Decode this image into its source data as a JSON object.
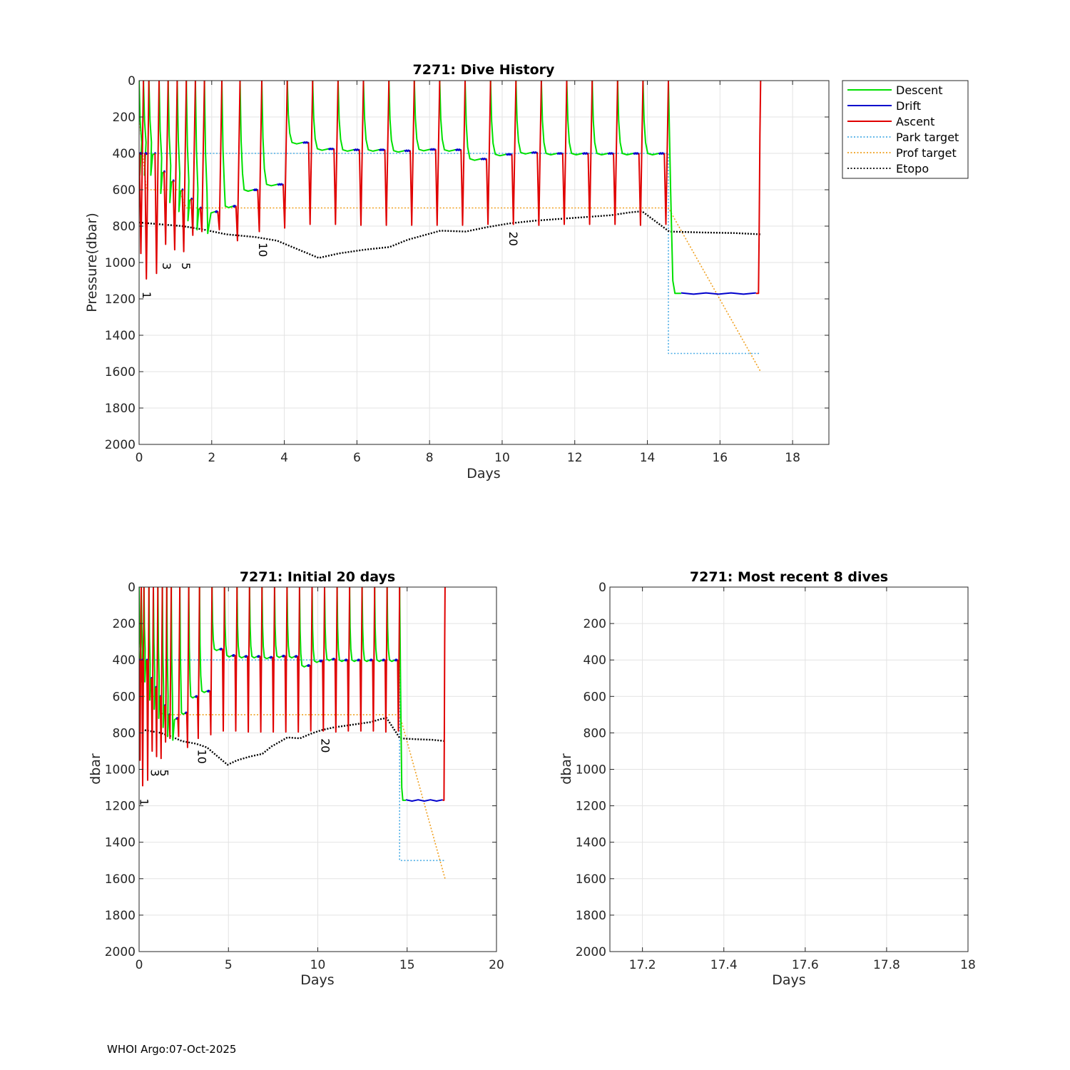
{
  "footer": "WHOI Argo:07-Oct-2025",
  "legend": {
    "placement": "outside-right",
    "entries": [
      {
        "label": "Descent",
        "color": "#00e000",
        "style": "solid"
      },
      {
        "label": "Drift",
        "color": "#0000cc",
        "style": "solid"
      },
      {
        "label": "Ascent",
        "color": "#e00000",
        "style": "solid"
      },
      {
        "label": "Park target",
        "color": "#4daee6",
        "style": "dotted"
      },
      {
        "label": "Prof target",
        "color": "#f0a020",
        "style": "dotted"
      },
      {
        "label": "Etopo",
        "color": "#000000",
        "style": "dotted"
      }
    ]
  },
  "chart_data": [
    {
      "id": "dive-history",
      "type": "line",
      "title": "7271: Dive History",
      "xlabel": "Days",
      "ylabel": "Pressure(dbar)",
      "xlim": [
        0,
        19
      ],
      "ylim": [
        0,
        2000
      ],
      "y_reversed": true,
      "grid": true,
      "xticks": [
        0,
        2,
        4,
        6,
        8,
        10,
        12,
        14,
        16,
        18
      ],
      "yticks": [
        0,
        200,
        400,
        600,
        800,
        1000,
        1200,
        1400,
        1600,
        1800,
        2000
      ],
      "cycle_labels": [
        {
          "text": "1",
          "x": 0.1,
          "y": 1160
        },
        {
          "text": "3",
          "x": 0.65,
          "y": 1000
        },
        {
          "text": "5",
          "x": 1.18,
          "y": 1000
        },
        {
          "text": "10",
          "x": 3.3,
          "y": 890
        },
        {
          "text": "20",
          "x": 10.2,
          "y": 830
        }
      ],
      "dives": [
        {
          "t": 0.0,
          "park": 400,
          "bottom": 950
        },
        {
          "t": 0.12,
          "park": 400,
          "bottom": 1090
        },
        {
          "t": 0.27,
          "park": 400,
          "bottom": 1060
        },
        {
          "t": 0.55,
          "park": 500,
          "bottom": 900
        },
        {
          "t": 0.8,
          "park": 550,
          "bottom": 930
        },
        {
          "t": 1.05,
          "park": 600,
          "bottom": 940
        },
        {
          "t": 1.3,
          "park": 650,
          "bottom": 850
        },
        {
          "t": 1.55,
          "park": 700,
          "bottom": 830
        },
        {
          "t": 1.8,
          "park": 720,
          "bottom": 820
        },
        {
          "t": 2.28,
          "park": 690,
          "bottom": 880
        },
        {
          "t": 2.78,
          "park": 600,
          "bottom": 830
        },
        {
          "t": 3.38,
          "park": 570,
          "bottom": 810
        },
        {
          "t": 4.08,
          "park": 340,
          "bottom": 790
        },
        {
          "t": 4.78,
          "park": 375,
          "bottom": 790
        },
        {
          "t": 5.48,
          "park": 380,
          "bottom": 795
        },
        {
          "t": 6.18,
          "park": 380,
          "bottom": 795
        },
        {
          "t": 6.88,
          "park": 385,
          "bottom": 795
        },
        {
          "t": 7.58,
          "park": 378,
          "bottom": 795
        },
        {
          "t": 8.28,
          "park": 380,
          "bottom": 795
        },
        {
          "t": 8.98,
          "park": 430,
          "bottom": 790
        },
        {
          "t": 9.68,
          "park": 405,
          "bottom": 790
        },
        {
          "t": 10.38,
          "park": 395,
          "bottom": 795
        },
        {
          "t": 11.08,
          "park": 400,
          "bottom": 790
        },
        {
          "t": 11.78,
          "park": 400,
          "bottom": 790
        },
        {
          "t": 12.48,
          "park": 400,
          "bottom": 790
        },
        {
          "t": 13.18,
          "park": 400,
          "bottom": 795
        },
        {
          "t": 13.88,
          "park": 400,
          "bottom": 790
        },
        {
          "t": 14.58,
          "park": 1170,
          "bottom": 1170
        }
      ],
      "final_ascent_t": 17.12,
      "park_target": [
        [
          0,
          400
        ],
        [
          14.58,
          400
        ],
        [
          14.58,
          1500
        ],
        [
          17.12,
          1500
        ]
      ],
      "prof_target": [
        [
          0,
          200
        ],
        [
          0.2,
          600
        ],
        [
          1.1,
          600
        ],
        [
          1.3,
          700
        ],
        [
          14.58,
          700
        ],
        [
          17.12,
          1600
        ]
      ],
      "etopo": [
        [
          0,
          780
        ],
        [
          0.6,
          790
        ],
        [
          1.2,
          800
        ],
        [
          1.8,
          820
        ],
        [
          2.4,
          845
        ],
        [
          3.2,
          860
        ],
        [
          3.8,
          880
        ],
        [
          4.4,
          930
        ],
        [
          4.95,
          975
        ],
        [
          5.5,
          950
        ],
        [
          6.2,
          930
        ],
        [
          6.9,
          915
        ],
        [
          7.4,
          875
        ],
        [
          8.3,
          825
        ],
        [
          9.0,
          830
        ],
        [
          9.6,
          805
        ],
        [
          10.2,
          785
        ],
        [
          10.9,
          770
        ],
        [
          11.6,
          760
        ],
        [
          12.3,
          750
        ],
        [
          13.0,
          740
        ],
        [
          13.5,
          725
        ],
        [
          13.85,
          718
        ],
        [
          14.6,
          830
        ],
        [
          15.5,
          835
        ],
        [
          16.4,
          838
        ],
        [
          17.12,
          845
        ]
      ]
    },
    {
      "id": "initial-20-days",
      "type": "line",
      "title": "7271: Initial 20 days",
      "xlabel": "Days",
      "ylabel": "dbar",
      "xlim": [
        0,
        20
      ],
      "ylim": [
        0,
        2000
      ],
      "y_reversed": true,
      "grid": true,
      "xticks": [
        0,
        5,
        10,
        15,
        20
      ],
      "yticks": [
        0,
        200,
        400,
        600,
        800,
        1000,
        1200,
        1400,
        1600,
        1800,
        2000
      ],
      "cycle_labels": [
        {
          "text": "1",
          "x": 0.05,
          "y": 1160
        },
        {
          "text": "3",
          "x": 0.65,
          "y": 1000
        },
        {
          "text": "5",
          "x": 1.18,
          "y": 1000
        },
        {
          "text": "10",
          "x": 3.3,
          "y": 890
        },
        {
          "text": "20",
          "x": 10.2,
          "y": 830
        }
      ]
    },
    {
      "id": "recent-8-dives",
      "type": "line",
      "title": "7271: Most recent 8 dives",
      "xlabel": "Days",
      "ylabel": "dbar",
      "xlim": [
        17.12,
        18
      ],
      "ylim": [
        0,
        2000
      ],
      "y_reversed": true,
      "grid": true,
      "xticks": [
        17.2,
        17.4,
        17.6,
        17.8,
        18
      ],
      "yticks": [
        0,
        200,
        400,
        600,
        800,
        1000,
        1200,
        1400,
        1600,
        1800,
        2000
      ]
    }
  ]
}
